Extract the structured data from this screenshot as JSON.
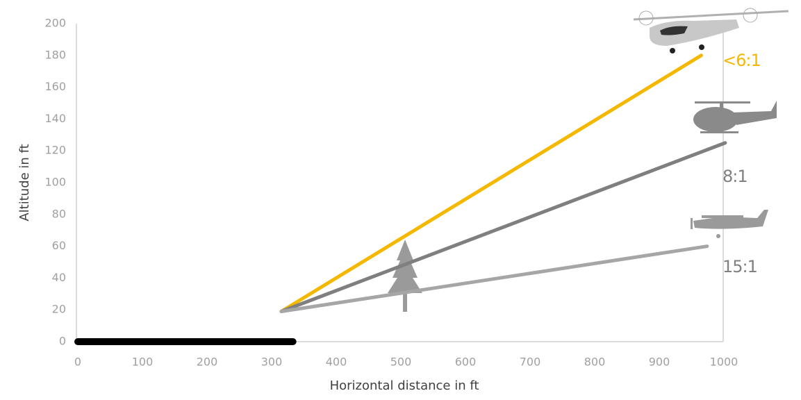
{
  "chart_data": {
    "type": "line",
    "xlabel": "Horizontal distance in ft",
    "ylabel": "Altitude in ft",
    "xlim": [
      0,
      1000
    ],
    "xticks": [
      0,
      100,
      200,
      300,
      400,
      500,
      600,
      700,
      800,
      900,
      1000
    ],
    "ylim": [
      0,
      200
    ],
    "yticks": [
      0,
      20,
      40,
      60,
      80,
      100,
      120,
      140,
      160,
      180,
      200
    ],
    "series": [
      {
        "name": "<6:1",
        "color": "#f5b800",
        "x": [
          315,
          965
        ],
        "values": [
          19,
          180
        ]
      },
      {
        "name": "8:1",
        "color": "#7f7f7f",
        "x": [
          315,
          1002
        ],
        "values": [
          19,
          125
        ]
      },
      {
        "name": "15:1",
        "color": "#a6a6a6",
        "x": [
          315,
          974
        ],
        "values": [
          19,
          60
        ]
      },
      {
        "color": "#000000",
        "x": [
          0,
          333
        ],
        "values": [
          0,
          0
        ]
      }
    ]
  }
}
